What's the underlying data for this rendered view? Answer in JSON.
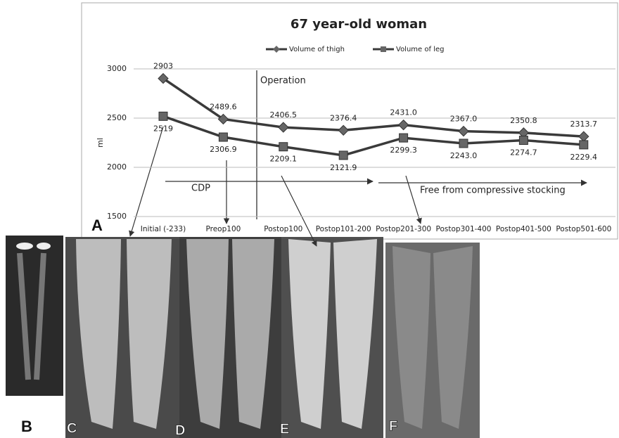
{
  "chart_data": {
    "type": "line",
    "title": "67 year-old woman",
    "y_label": "ml",
    "categories": [
      "Initial (-233)",
      "Preop100",
      "Postop100",
      "Postop101-200",
      "Postop201-300",
      "Postop301-400",
      "Postop401-500",
      "Postop501-600"
    ],
    "series": [
      {
        "name": "Volume of thigh",
        "color": "#3a3a3a",
        "marker": "diamond",
        "values": [
          2903,
          2489.6,
          2406.5,
          2376.4,
          2431.0,
          2367.0,
          2350.8,
          2313.7
        ],
        "value_labels": [
          "2903",
          "2489.6",
          "2406.5",
          "2376.4",
          "2431.0",
          "2367.0",
          "2350.8",
          "2313.7"
        ]
      },
      {
        "name": "Volume of leg",
        "color": "#3a3a3a",
        "marker": "square",
        "values": [
          2519,
          2306.9,
          2209.1,
          2121.9,
          2299.3,
          2243.0,
          2274.7,
          2229.4
        ],
        "value_labels": [
          "2519",
          "2306.9",
          "2209.1",
          "2121.9",
          "2299.3",
          "2243.0",
          "2274.7",
          "2229.4"
        ]
      }
    ],
    "ylim": [
      1500,
      3000
    ],
    "yticks": [
      1500,
      2000,
      2500,
      3000
    ],
    "grid": true,
    "annotations": {
      "operation": "Operation",
      "cdp": "CDP",
      "free": "Free from compressive stocking"
    }
  },
  "panel_labels": [
    "A",
    "B",
    "C",
    "D",
    "E",
    "F"
  ]
}
